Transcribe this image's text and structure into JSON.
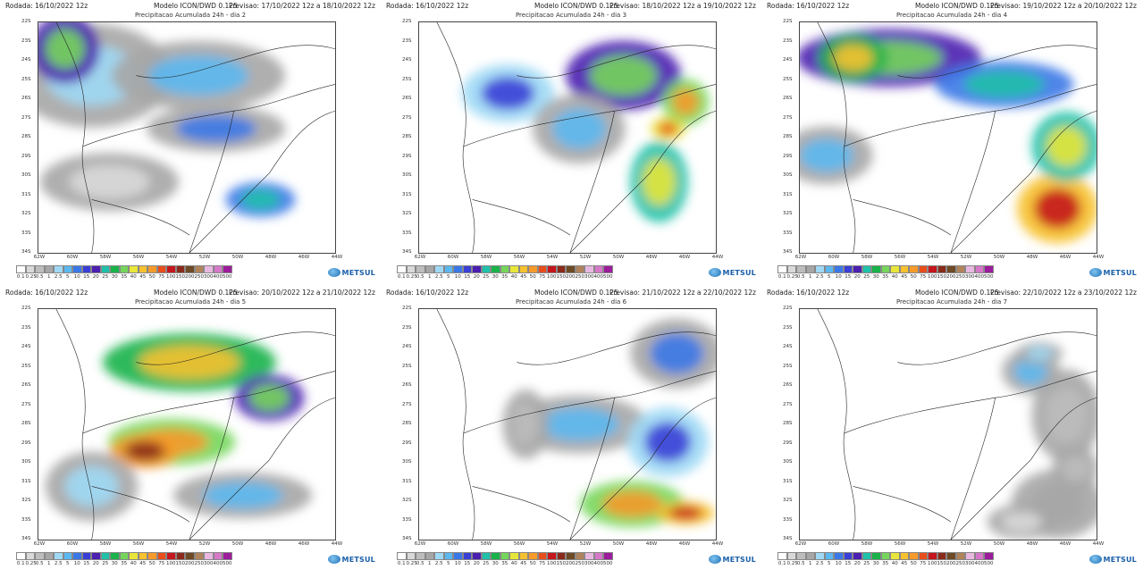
{
  "panels": [
    {
      "rodada": "Rodada: 16/10/2022 12z",
      "modelo": "Modelo ICON/DWD 0.125",
      "previsao": "Previsao: 17/10/2022 12z a 18/10/2022 12z",
      "subtitle": "Precipitacao Acumulada 24h - dia 2"
    },
    {
      "rodada": "Rodada: 16/10/2022 12z",
      "modelo": "Modelo ICON/DWD 0.125",
      "previsao": "Previsao: 18/10/2022 12z a 19/10/2022 12z",
      "subtitle": "Precipitacao Acumulada 24h - dia 3"
    },
    {
      "rodada": "Rodada: 16/10/2022 12z",
      "modelo": "Modelo ICON/DWD 0.125",
      "previsao": "Previsao: 19/10/2022 12z a 20/10/2022 12z",
      "subtitle": "Precipitacao Acumulada 24h - dia 4"
    },
    {
      "rodada": "Rodada: 16/10/2022 12z",
      "modelo": "Modelo ICON/DWD 0.125",
      "previsao": "Previsao: 20/10/2022 12z a 21/10/2022 12z",
      "subtitle": "Precipitacao Acumulada 24h - dia 5"
    },
    {
      "rodada": "Rodada: 16/10/2022 12z",
      "modelo": "Modelo ICON/DWD 0.125",
      "previsao": "Previsao: 21/10/2022 12z a 22/10/2022 12z",
      "subtitle": "Precipitacao Acumulada 24h - dia 6"
    },
    {
      "rodada": "Rodada: 16/10/2022 12z",
      "modelo": "Modelo ICON/DWD 0.125",
      "previsao": "Previsao: 22/10/2022 12z a 23/10/2022 12z",
      "subtitle": "Precipitacao Acumulada 24h - dia 7"
    }
  ],
  "lat_labels": [
    "22S",
    "23S",
    "24S",
    "25S",
    "26S",
    "27S",
    "28S",
    "29S",
    "30S",
    "31S",
    "32S",
    "33S",
    "34S"
  ],
  "lon_labels": [
    "62W",
    "60W",
    "58W",
    "56W",
    "54W",
    "52W",
    "50W",
    "48W",
    "46W",
    "44W"
  ],
  "legend": {
    "values": [
      "0.1",
      "0.25",
      "0.5",
      "1",
      "2.5",
      "5",
      "10",
      "15",
      "20",
      "25",
      "30",
      "35",
      "40",
      "45",
      "50",
      "75",
      "100",
      "150",
      "200",
      "250",
      "300",
      "400",
      "500"
    ],
    "colors": [
      "#ffffff",
      "#d9d9d9",
      "#bdbdbd",
      "#a6a6a6",
      "#9fd9f5",
      "#5bb8f0",
      "#3b78e7",
      "#3a3fd6",
      "#4b1fb0",
      "#1fc1a8",
      "#19b34a",
      "#75d65b",
      "#e8e63a",
      "#f7c12f",
      "#f59a2b",
      "#e84e1c",
      "#c4161c",
      "#8a2a1b",
      "#6e4a25",
      "#b0835a",
      "#e8b8e0",
      "#d677c9",
      "#9c1c9c"
    ],
    "logo": "METSUL"
  }
}
